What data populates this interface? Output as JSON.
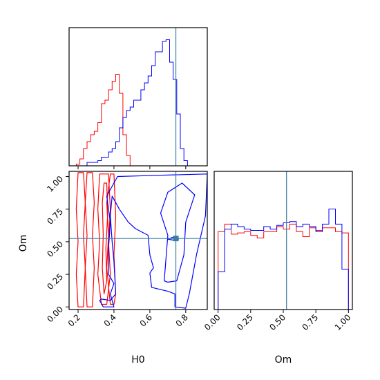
{
  "chart_data": [
    {
      "type": "histogram",
      "panel": "H0 marginal",
      "x_range": [
        0.15,
        0.92
      ],
      "truth_line": 0.745,
      "bin_width": 0.02,
      "series": [
        {
          "color": "#ff0000",
          "bin_start": 0.17,
          "counts": [
            0,
            1,
            4,
            10,
            14,
            18,
            20,
            25,
            36,
            38,
            44,
            49,
            53,
            42,
            18,
            6,
            0
          ]
        },
        {
          "color": "#0000ff",
          "bin_start": 0.25,
          "counts": [
            2,
            2,
            2,
            3,
            5,
            5,
            8,
            10,
            14,
            22,
            28,
            32,
            34,
            38,
            38,
            44,
            48,
            52,
            58,
            66,
            66,
            72,
            73,
            60,
            50,
            30,
            10,
            3,
            0
          ]
        }
      ]
    },
    {
      "type": "contour",
      "panel": "H0 vs Om",
      "x_range": [
        0.15,
        0.92
      ],
      "y_range": [
        -0.02,
        1.04
      ],
      "xlabel": "H0",
      "ylabel": "Om",
      "xticks": [
        "0.2",
        "0.4",
        "0.6",
        "0.8"
      ],
      "yticks": [
        "0.00",
        "0.25",
        "0.50",
        "0.75",
        "1.00"
      ],
      "truth_point": [
        0.745,
        0.525
      ],
      "series": [
        {
          "color": "#ff0000",
          "levels": [
            [
              [
                0.2,
                0.0
              ],
              [
                0.19,
                0.25
              ],
              [
                0.2,
                0.5
              ],
              [
                0.19,
                0.75
              ],
              [
                0.2,
                1.03
              ],
              [
                0.23,
                1.03
              ],
              [
                0.24,
                0.8
              ],
              [
                0.23,
                0.55
              ],
              [
                0.24,
                0.3
              ],
              [
                0.23,
                0.0
              ]
            ],
            [
              [
                0.25,
                0.0
              ],
              [
                0.24,
                0.3
              ],
              [
                0.25,
                0.55
              ],
              [
                0.24,
                0.8
              ],
              [
                0.25,
                1.03
              ],
              [
                0.28,
                1.03
              ],
              [
                0.29,
                0.8
              ],
              [
                0.28,
                0.55
              ],
              [
                0.29,
                0.3
              ],
              [
                0.28,
                0.0
              ]
            ],
            [
              [
                0.33,
                0.02
              ],
              [
                0.31,
                0.25
              ],
              [
                0.32,
                0.5
              ],
              [
                0.31,
                0.75
              ],
              [
                0.32,
                1.02
              ],
              [
                0.37,
                1.02
              ],
              [
                0.38,
                0.75
              ],
              [
                0.37,
                0.5
              ],
              [
                0.38,
                0.25
              ],
              [
                0.36,
                0.02
              ]
            ],
            [
              [
                0.345,
                0.1
              ],
              [
                0.335,
                0.3
              ],
              [
                0.34,
                0.55
              ],
              [
                0.335,
                0.8
              ],
              [
                0.345,
                0.95
              ],
              [
                0.36,
                0.95
              ],
              [
                0.365,
                0.7
              ],
              [
                0.355,
                0.45
              ],
              [
                0.36,
                0.2
              ]
            ],
            [
              [
                0.38,
                0.02
              ],
              [
                0.36,
                0.3
              ],
              [
                0.37,
                0.55
              ],
              [
                0.36,
                0.8
              ],
              [
                0.38,
                1.02
              ],
              [
                0.4,
                1.02
              ],
              [
                0.41,
                0.7
              ],
              [
                0.4,
                0.4
              ],
              [
                0.41,
                0.1
              ],
              [
                0.4,
                0.02
              ]
            ]
          ]
        },
        {
          "color": "#0000ff",
          "levels": [
            [
              [
                0.32,
                0.05
              ],
              [
                0.34,
                0.0
              ],
              [
                0.4,
                0.0
              ],
              [
                0.38,
                0.1
              ],
              [
                0.4,
                0.18
              ],
              [
                0.37,
                0.25
              ],
              [
                0.37,
                0.45
              ],
              [
                0.38,
                0.65
              ],
              [
                0.36,
                0.85
              ],
              [
                0.42,
                1.0
              ],
              [
                0.65,
                1.01
              ],
              [
                0.92,
                1.02
              ],
              [
                0.91,
                0.7
              ],
              [
                0.86,
                0.4
              ],
              [
                0.82,
                0.1
              ],
              [
                0.8,
                -0.01
              ],
              [
                0.74,
                0.0
              ],
              [
                0.74,
                0.1
              ],
              [
                0.7,
                0.12
              ],
              [
                0.61,
                0.15
              ],
              [
                0.6,
                0.26
              ],
              [
                0.62,
                0.3
              ],
              [
                0.6,
                0.4
              ],
              [
                0.59,
                0.55
              ],
              [
                0.52,
                0.6
              ],
              [
                0.48,
                0.65
              ],
              [
                0.43,
                0.75
              ],
              [
                0.39,
                0.85
              ],
              [
                0.38,
                0.7
              ],
              [
                0.39,
                0.5
              ],
              [
                0.4,
                0.35
              ],
              [
                0.41,
                0.1
              ],
              [
                0.38,
                0.05
              ],
              [
                0.33,
                0.06
              ]
            ],
            [
              [
                0.68,
                0.2
              ],
              [
                0.7,
                0.55
              ],
              [
                0.66,
                0.72
              ],
              [
                0.7,
                0.88
              ],
              [
                0.78,
                0.95
              ],
              [
                0.85,
                0.86
              ],
              [
                0.8,
                0.65
              ],
              [
                0.79,
                0.4
              ],
              [
                0.75,
                0.2
              ],
              [
                0.7,
                0.19
              ]
            ],
            [
              [
                0.7,
                0.52
              ],
              [
                0.74,
                0.54
              ],
              [
                0.76,
                0.52
              ],
              [
                0.74,
                0.51
              ]
            ]
          ]
        }
      ]
    },
    {
      "type": "histogram",
      "panel": "Om marginal",
      "x_range": [
        -0.03,
        1.03
      ],
      "xlabel": "Om",
      "xticks": [
        "0.00",
        "0.25",
        "0.50",
        "0.75",
        "1.00"
      ],
      "truth_line": 0.525,
      "bin_width": 0.05,
      "series": [
        {
          "color": "#ff0000",
          "bin_start": 0.0,
          "counts": [
            62,
            68,
            60,
            61,
            62,
            59,
            57,
            62,
            62,
            66,
            64,
            68,
            62,
            58,
            65,
            63,
            65,
            65,
            62,
            61
          ]
        },
        {
          "color": "#0000ff",
          "bin_start": 0.0,
          "counts": [
            30,
            64,
            68,
            66,
            64,
            63,
            63,
            66,
            64,
            67,
            69,
            70,
            66,
            68,
            66,
            62,
            68,
            80,
            68,
            32
          ]
        }
      ]
    }
  ]
}
